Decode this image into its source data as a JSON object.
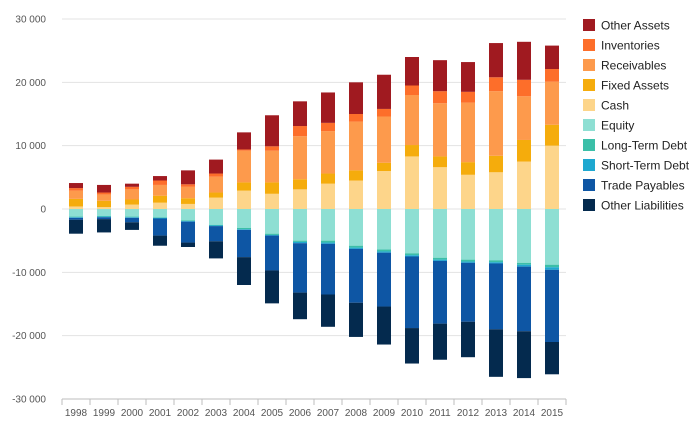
{
  "chart_data": {
    "type": "bar",
    "stacked": true,
    "categories": [
      "1998",
      "1999",
      "2000",
      "2001",
      "2002",
      "2003",
      "2004",
      "2005",
      "2006",
      "2007",
      "2008",
      "2009",
      "2010",
      "2011",
      "2012",
      "2013",
      "2014",
      "2015"
    ],
    "ylim": [
      -30000,
      30000
    ],
    "yticks": [
      30000,
      20000,
      10000,
      0,
      -10000,
      -20000,
      -30000
    ],
    "ytick_labels": [
      "30 000",
      "20 000",
      "10 000",
      "0",
      "-10 000",
      "-20 000",
      "-30 000"
    ],
    "grid": true,
    "legend_position": "right",
    "positive_series": [
      {
        "name": "Cash",
        "color": "#fdd58a",
        "values": [
          400,
          300,
          700,
          1000,
          800,
          1800,
          2900,
          2400,
          3100,
          4000,
          4500,
          6000,
          8300,
          6600,
          5400,
          5800,
          7500,
          10000
        ]
      },
      {
        "name": "Fixed Assets",
        "color": "#f5ac0c",
        "values": [
          1200,
          1000,
          800,
          1100,
          900,
          800,
          1300,
          1800,
          1600,
          1600,
          1600,
          1300,
          1800,
          1700,
          2000,
          2600,
          3400,
          3300
        ]
      },
      {
        "name": "Receivables",
        "color": "#fd9a4c",
        "values": [
          1300,
          1000,
          1600,
          1700,
          1800,
          2500,
          5000,
          5000,
          6800,
          6700,
          7700,
          7300,
          7900,
          8400,
          9400,
          10200,
          6900,
          6800
        ]
      },
      {
        "name": "Inventories",
        "color": "#fd6e2a",
        "values": [
          400,
          300,
          400,
          700,
          400,
          500,
          200,
          700,
          1600,
          1300,
          1200,
          1200,
          1500,
          1900,
          1700,
          2200,
          2600,
          2000
        ]
      },
      {
        "name": "Other Assets",
        "color": "#a01a20",
        "values": [
          800,
          1200,
          500,
          700,
          2200,
          2200,
          2700,
          4900,
          3900,
          4800,
          5000,
          5400,
          4500,
          4900,
          4700,
          5400,
          6000,
          3700
        ]
      }
    ],
    "negative_series": [
      {
        "name": "Equity",
        "color": "#8edfd3",
        "values": [
          -1200,
          -1100,
          -1200,
          -1300,
          -1800,
          -2500,
          -3000,
          -3900,
          -5000,
          -5000,
          -5800,
          -6400,
          -7000,
          -7700,
          -8000,
          -8100,
          -8500,
          -8800
        ]
      },
      {
        "name": "Long-Term Debt",
        "color": "#3bbfa8",
        "values": [
          -100,
          -100,
          -100,
          -100,
          -100,
          -100,
          -200,
          -200,
          -200,
          -300,
          -300,
          -300,
          -300,
          -300,
          -300,
          -300,
          -300,
          -400
        ]
      },
      {
        "name": "Short-Term Debt",
        "color": "#1ea8d0",
        "values": [
          -100,
          -100,
          -100,
          -100,
          -100,
          -100,
          -100,
          -100,
          -200,
          -200,
          -200,
          -200,
          -200,
          -200,
          -200,
          -200,
          -300,
          -400
        ]
      },
      {
        "name": "Trade Payables",
        "color": "#0e56a4",
        "values": [
          -300,
          -300,
          -700,
          -2700,
          -3300,
          -2400,
          -4300,
          -5500,
          -7800,
          -8000,
          -8500,
          -8500,
          -11300,
          -9900,
          -9300,
          -10400,
          -10200,
          -11400
        ]
      },
      {
        "name": "Other Liabilities",
        "color": "#042a4e",
        "values": [
          -2200,
          -2100,
          -1200,
          -1600,
          -700,
          -2700,
          -4400,
          -5200,
          -4200,
          -5100,
          -5400,
          -6000,
          -5600,
          -5700,
          -5600,
          -7500,
          -7400,
          -5100
        ]
      }
    ],
    "legend": [
      "Other Assets",
      "Inventories",
      "Receivables",
      "Fixed Assets",
      "Cash",
      "Equity",
      "Long-Term Debt",
      "Short-Term Debt",
      "Trade Payables",
      "Other Liabilities"
    ]
  }
}
